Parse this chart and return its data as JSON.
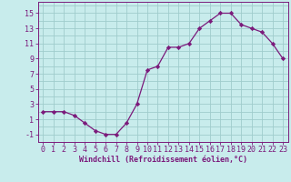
{
  "x": [
    0,
    1,
    2,
    3,
    4,
    5,
    6,
    7,
    8,
    9,
    10,
    11,
    12,
    13,
    14,
    15,
    16,
    17,
    18,
    19,
    20,
    21,
    22,
    23
  ],
  "y": [
    2,
    2,
    2,
    1.5,
    0.5,
    -0.5,
    -1,
    -1,
    0.5,
    3,
    7.5,
    8,
    10.5,
    10.5,
    11,
    13,
    14,
    15,
    15,
    13.5,
    13,
    12.5,
    11,
    9
  ],
  "line_color": "#7B1A7B",
  "marker": "D",
  "marker_size": 2.2,
  "bg_color": "#c8ecec",
  "grid_color": "#a0cccc",
  "xlabel": "Windchill (Refroidissement éolien,°C)",
  "xlabel_fontsize": 6.0,
  "ylabel_ticks": [
    -1,
    1,
    3,
    5,
    7,
    9,
    11,
    13,
    15
  ],
  "xlim": [
    -0.5,
    23.5
  ],
  "ylim": [
    -2.0,
    16.5
  ],
  "tick_fontsize": 6.0
}
